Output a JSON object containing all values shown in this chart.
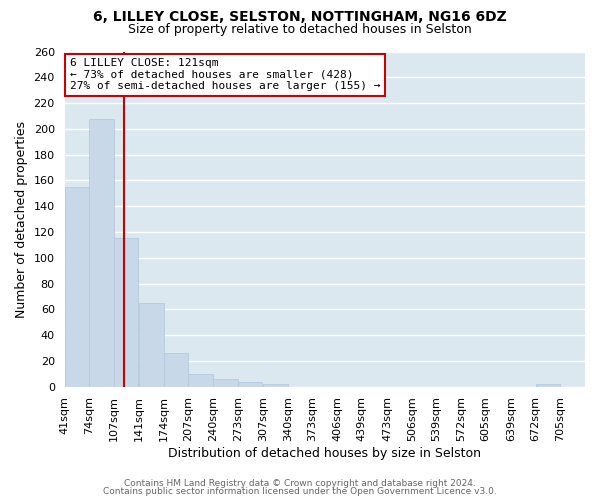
{
  "title_line1": "6, LILLEY CLOSE, SELSTON, NOTTINGHAM, NG16 6DZ",
  "title_line2": "Size of property relative to detached houses in Selston",
  "xlabel": "Distribution of detached houses by size in Selston",
  "ylabel": "Number of detached properties",
  "bar_edges": [
    41,
    74,
    107,
    141,
    174,
    207,
    240,
    273,
    307,
    340,
    373,
    406,
    439,
    473,
    506,
    539,
    572,
    605,
    639,
    672,
    705
  ],
  "bar_heights": [
    155,
    208,
    115,
    65,
    26,
    10,
    6,
    4,
    2,
    0,
    0,
    0,
    0,
    0,
    0,
    0,
    0,
    0,
    0,
    2,
    0
  ],
  "bar_color": "#c8d8e8",
  "bar_edge_color": "#aec8dc",
  "property_size": 121,
  "red_line_color": "#cc0000",
  "annotation_box_edge_color": "#cc0000",
  "annotation_line1": "6 LILLEY CLOSE: 121sqm",
  "annotation_line2": "← 73% of detached houses are smaller (428)",
  "annotation_line3": "27% of semi-detached houses are larger (155) →",
  "ylim": [
    0,
    260
  ],
  "yticks": [
    0,
    20,
    40,
    60,
    80,
    100,
    120,
    140,
    160,
    180,
    200,
    220,
    240,
    260
  ],
  "footer_line1": "Contains HM Land Registry data © Crown copyright and database right 2024.",
  "footer_line2": "Contains public sector information licensed under the Open Government Licence v3.0.",
  "background_color": "#ffffff",
  "plot_background_color": "#dce8f0",
  "grid_color": "#ffffff",
  "tick_label_fontsize": 8,
  "axis_label_fontsize": 9,
  "title_fontsize1": 10,
  "title_fontsize2": 9,
  "footer_fontsize": 6.5,
  "annotation_fontsize": 8
}
